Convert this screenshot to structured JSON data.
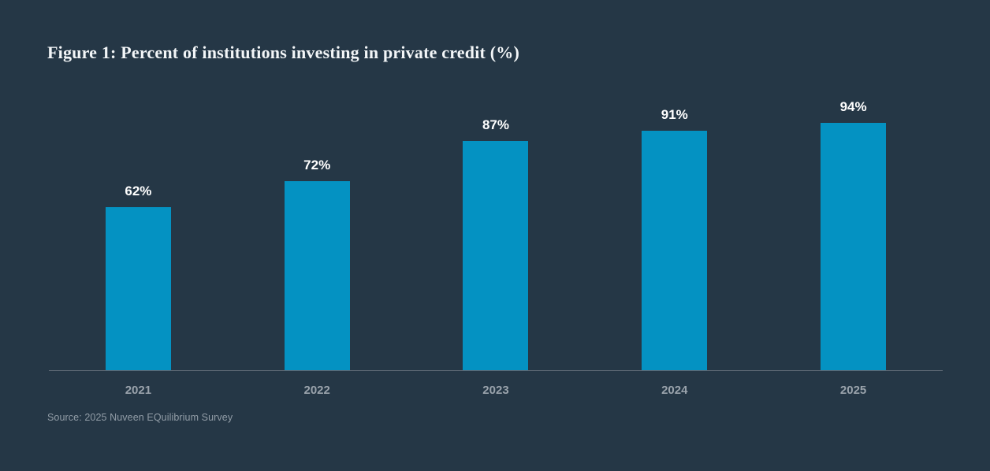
{
  "title": "Figure 1: Percent of institutions investing in private credit (%)",
  "source_note": "Source: 2025 Nuveen EQuilibrium Survey",
  "colors": {
    "background": "#253746",
    "bar": "#0492c2",
    "title_text": "#f3f6f8",
    "value_label": "#ffffff",
    "axis_line": "#5c6874",
    "tick_label": "#9aa3ac",
    "source_text": "#929da7"
  },
  "chart_data": {
    "type": "bar",
    "title": "Figure 1: Percent of institutions investing in private credit (%)",
    "categories": [
      "2021",
      "2022",
      "2023",
      "2024",
      "2025"
    ],
    "values": [
      62,
      72,
      87,
      91,
      94
    ],
    "value_labels": [
      "62%",
      "72%",
      "87%",
      "91%",
      "94%"
    ],
    "xlabel": "",
    "ylabel": "",
    "ylim": [
      0,
      100
    ],
    "grid": false,
    "legend": false,
    "bar_labels_position": "above",
    "orientation": "vertical"
  }
}
